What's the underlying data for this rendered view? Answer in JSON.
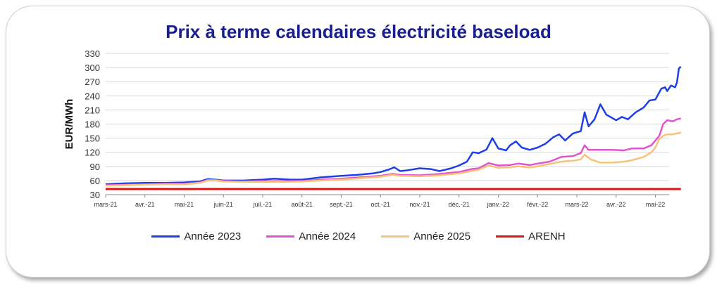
{
  "chart_data": {
    "type": "line",
    "title": "Prix à terme calendaires électricité baseload",
    "xlabel": "",
    "ylabel": "EUR/MWh",
    "ylim": [
      30,
      330
    ],
    "yticks": [
      30,
      60,
      90,
      120,
      150,
      180,
      210,
      240,
      270,
      300,
      330
    ],
    "x_ticks": [
      "mars-21",
      "avr.-21",
      "mai-21",
      "juin-21",
      "juil.-21",
      "août-21",
      "sept.-21",
      "oct.-21",
      "nov.-21",
      "déc.-21",
      "janv.-22",
      "févr.-22",
      "mars-22",
      "avr.-22",
      "mai-22"
    ],
    "x_range": [
      0,
      14.35
    ],
    "grid": "horizontal",
    "legend_position": "bottom",
    "series": [
      {
        "name": "Année 2023",
        "color": "#1f3fe6",
        "points": [
          [
            0,
            52
          ],
          [
            0.5,
            54
          ],
          [
            1,
            55
          ],
          [
            1.5,
            55
          ],
          [
            2,
            56
          ],
          [
            2.4,
            58
          ],
          [
            2.6,
            63
          ],
          [
            2.8,
            62
          ],
          [
            3,
            60
          ],
          [
            3.5,
            60
          ],
          [
            4,
            62
          ],
          [
            4.3,
            64
          ],
          [
            4.7,
            62
          ],
          [
            5,
            62
          ],
          [
            5.5,
            67
          ],
          [
            6,
            70
          ],
          [
            6.4,
            72
          ],
          [
            6.8,
            75
          ],
          [
            7,
            78
          ],
          [
            7.2,
            83
          ],
          [
            7.35,
            88
          ],
          [
            7.5,
            80
          ],
          [
            7.7,
            82
          ],
          [
            8,
            86
          ],
          [
            8.3,
            84
          ],
          [
            8.5,
            80
          ],
          [
            8.8,
            86
          ],
          [
            9,
            92
          ],
          [
            9.2,
            100
          ],
          [
            9.35,
            120
          ],
          [
            9.5,
            118
          ],
          [
            9.7,
            126
          ],
          [
            9.85,
            150
          ],
          [
            10,
            128
          ],
          [
            10.2,
            124
          ],
          [
            10.3,
            135
          ],
          [
            10.45,
            143
          ],
          [
            10.6,
            130
          ],
          [
            10.8,
            125
          ],
          [
            11,
            130
          ],
          [
            11.2,
            138
          ],
          [
            11.4,
            152
          ],
          [
            11.55,
            158
          ],
          [
            11.7,
            145
          ],
          [
            11.9,
            160
          ],
          [
            12.1,
            165
          ],
          [
            12.2,
            205
          ],
          [
            12.3,
            175
          ],
          [
            12.45,
            190
          ],
          [
            12.6,
            222
          ],
          [
            12.75,
            200
          ],
          [
            13,
            188
          ],
          [
            13.15,
            195
          ],
          [
            13.3,
            190
          ],
          [
            13.5,
            205
          ],
          [
            13.7,
            215
          ],
          [
            13.85,
            230
          ],
          [
            14,
            232
          ],
          [
            14.15,
            255
          ],
          [
            14.25,
            258
          ],
          [
            14.3,
            250
          ],
          [
            14.4,
            262
          ],
          [
            14.5,
            258
          ],
          [
            14.55,
            268
          ],
          [
            14.6,
            298
          ],
          [
            14.65,
            302
          ]
        ]
      },
      {
        "name": "Année 2024",
        "color": "#e055cf",
        "points": [
          [
            0,
            50
          ],
          [
            0.5,
            51
          ],
          [
            1,
            52
          ],
          [
            1.5,
            53
          ],
          [
            2,
            53
          ],
          [
            2.4,
            56
          ],
          [
            2.6,
            61
          ],
          [
            2.8,
            61
          ],
          [
            3,
            59
          ],
          [
            3.5,
            58
          ],
          [
            4,
            59
          ],
          [
            4.5,
            59
          ],
          [
            5,
            59
          ],
          [
            5.5,
            62
          ],
          [
            6,
            64
          ],
          [
            6.5,
            67
          ],
          [
            7,
            70
          ],
          [
            7.3,
            74
          ],
          [
            7.5,
            72
          ],
          [
            8,
            71
          ],
          [
            8.5,
            74
          ],
          [
            9,
            78
          ],
          [
            9.3,
            84
          ],
          [
            9.5,
            86
          ],
          [
            9.75,
            97
          ],
          [
            10,
            92
          ],
          [
            10.3,
            93
          ],
          [
            10.5,
            96
          ],
          [
            10.8,
            93
          ],
          [
            11,
            96
          ],
          [
            11.3,
            100
          ],
          [
            11.6,
            110
          ],
          [
            11.9,
            112
          ],
          [
            12.1,
            118
          ],
          [
            12.2,
            135
          ],
          [
            12.3,
            125
          ],
          [
            12.6,
            125
          ],
          [
            12.9,
            125
          ],
          [
            13.2,
            124
          ],
          [
            13.4,
            128
          ],
          [
            13.7,
            128
          ],
          [
            13.9,
            135
          ],
          [
            14.0,
            145
          ],
          [
            14.1,
            155
          ],
          [
            14.2,
            180
          ],
          [
            14.3,
            188
          ],
          [
            14.45,
            186
          ],
          [
            14.55,
            190
          ],
          [
            14.65,
            192
          ]
        ]
      },
      {
        "name": "Année 2025",
        "color": "#f7c37c",
        "points": [
          [
            0,
            49
          ],
          [
            0.5,
            50
          ],
          [
            1,
            51
          ],
          [
            1.5,
            52
          ],
          [
            2,
            52
          ],
          [
            2.4,
            55
          ],
          [
            2.6,
            60
          ],
          [
            2.8,
            60
          ],
          [
            3,
            58
          ],
          [
            3.5,
            57
          ],
          [
            4,
            57
          ],
          [
            4.5,
            57
          ],
          [
            5,
            58
          ],
          [
            5.5,
            60
          ],
          [
            6,
            62
          ],
          [
            6.5,
            65
          ],
          [
            7,
            68
          ],
          [
            7.3,
            72
          ],
          [
            7.5,
            70
          ],
          [
            8,
            69
          ],
          [
            8.5,
            71
          ],
          [
            9,
            75
          ],
          [
            9.3,
            80
          ],
          [
            9.5,
            83
          ],
          [
            9.75,
            92
          ],
          [
            10,
            87
          ],
          [
            10.3,
            88
          ],
          [
            10.5,
            90
          ],
          [
            10.8,
            88
          ],
          [
            11,
            90
          ],
          [
            11.3,
            95
          ],
          [
            11.6,
            100
          ],
          [
            11.9,
            102
          ],
          [
            12.1,
            105
          ],
          [
            12.2,
            115
          ],
          [
            12.35,
            105
          ],
          [
            12.6,
            98
          ],
          [
            12.9,
            98
          ],
          [
            13.2,
            100
          ],
          [
            13.4,
            103
          ],
          [
            13.7,
            110
          ],
          [
            13.9,
            120
          ],
          [
            14.0,
            130
          ],
          [
            14.1,
            148
          ],
          [
            14.2,
            155
          ],
          [
            14.3,
            158
          ],
          [
            14.45,
            158
          ],
          [
            14.55,
            160
          ],
          [
            14.65,
            162
          ]
        ]
      },
      {
        "name": "ARENH",
        "color": "#e01212",
        "points": [
          [
            0,
            42
          ],
          [
            14.65,
            42
          ]
        ]
      }
    ]
  }
}
